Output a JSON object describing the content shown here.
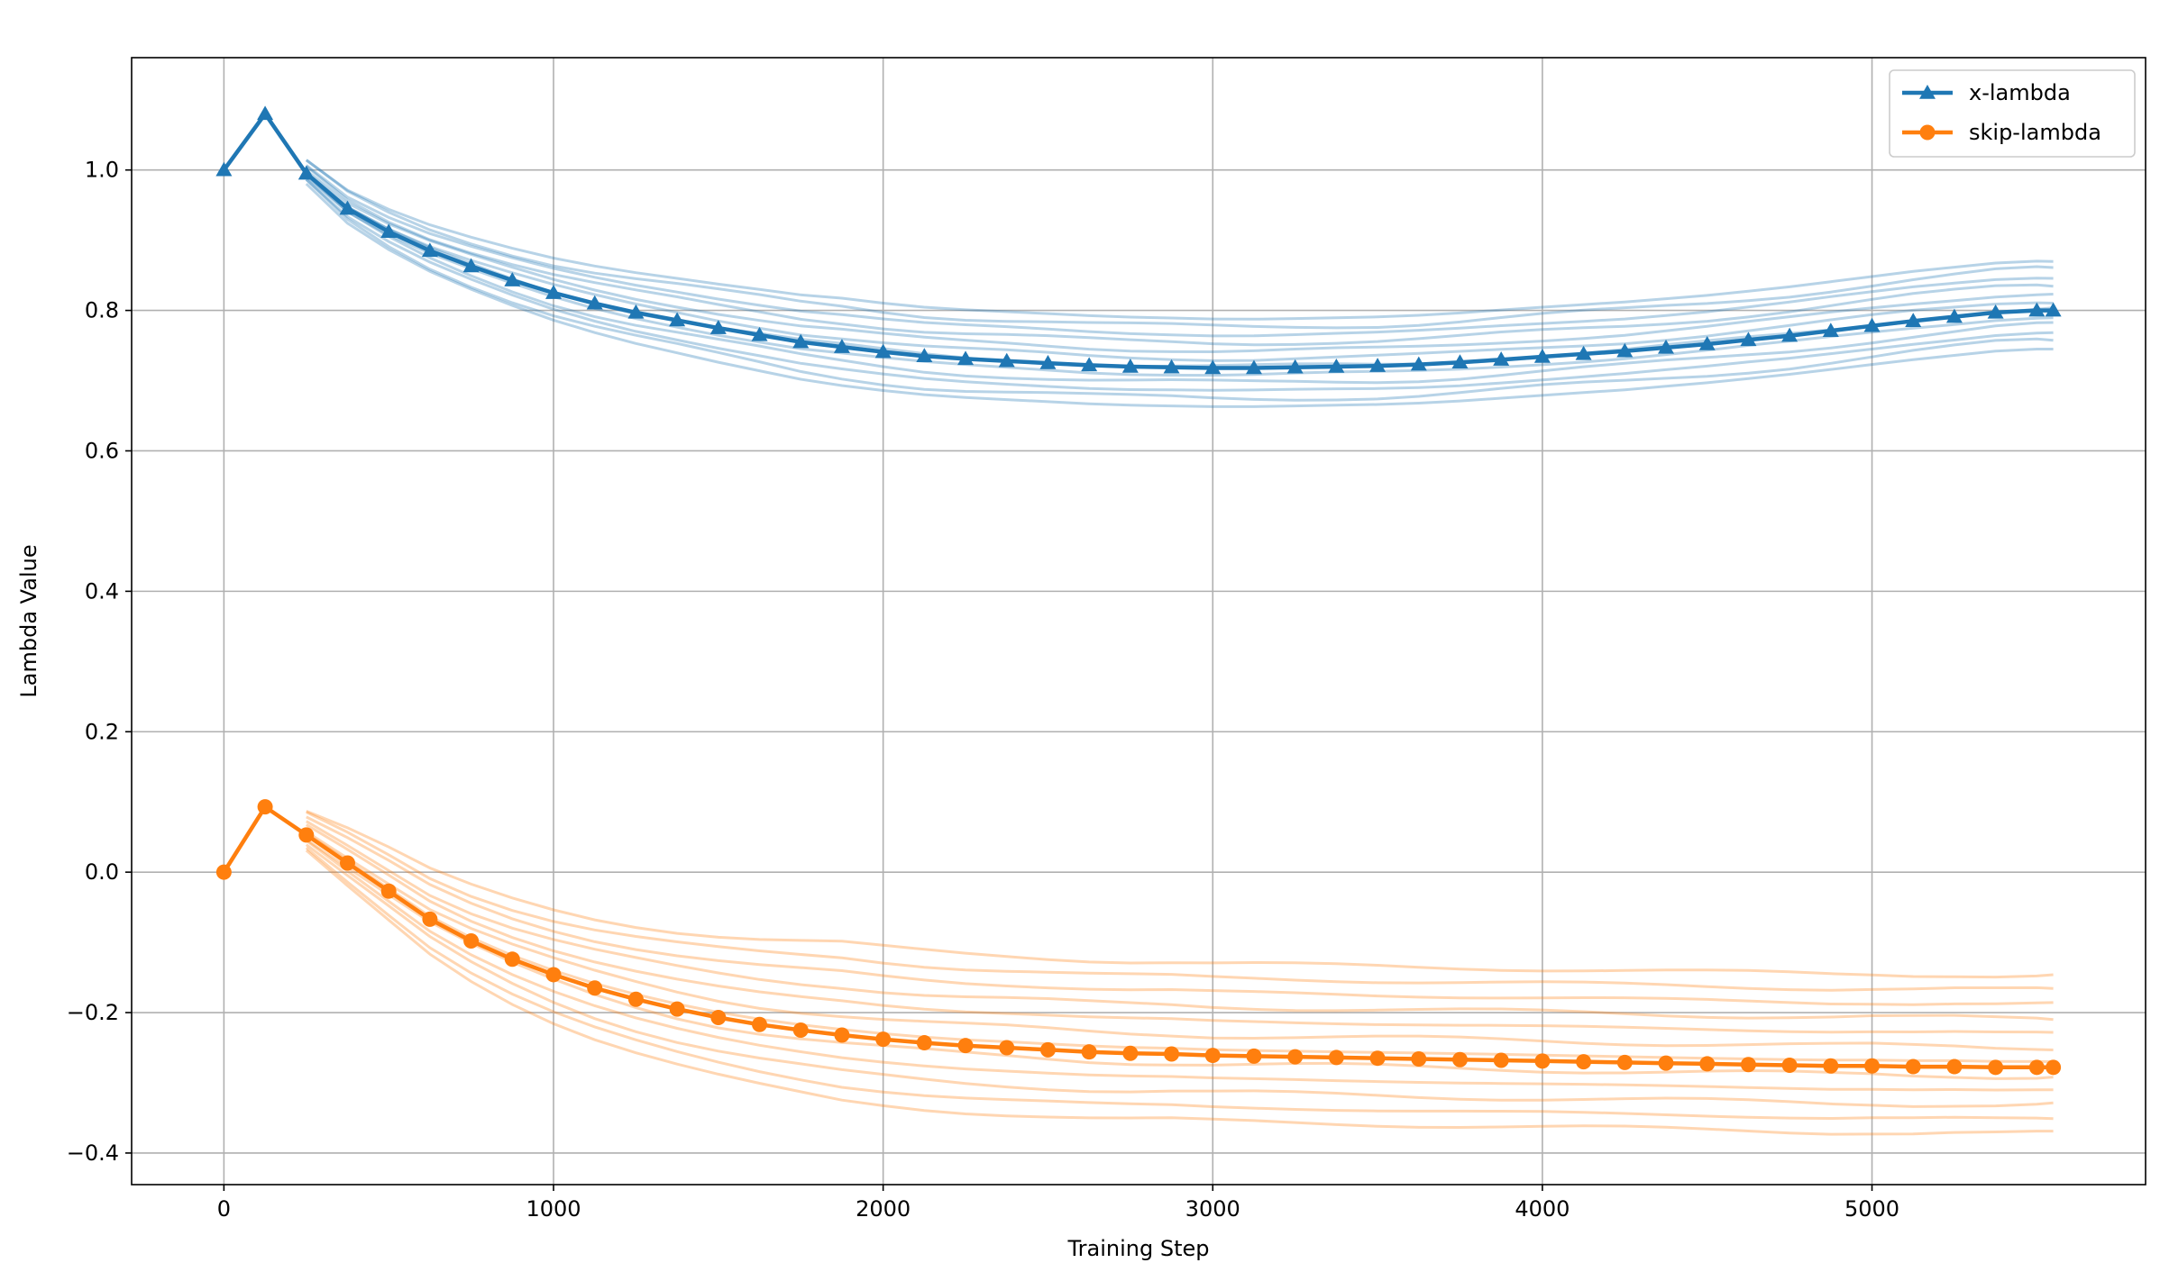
{
  "chart_data": {
    "type": "line",
    "xlabel": "Training Step",
    "ylabel": "Lambda Value",
    "xlim": [
      -280,
      5830
    ],
    "ylim": [
      -0.445,
      1.16
    ],
    "xticks": [
      0,
      1000,
      2000,
      3000,
      4000,
      5000
    ],
    "xtick_labels": [
      "0",
      "1000",
      "2000",
      "3000",
      "4000",
      "5000"
    ],
    "yticks": [
      -0.4,
      -0.2,
      0.0,
      0.2,
      0.4,
      0.6,
      0.8,
      1.0
    ],
    "ytick_labels": [
      "−0.4",
      "−0.2",
      "0.0",
      "0.2",
      "0.4",
      "0.6",
      "0.8",
      "1.0"
    ],
    "grid": true,
    "legend_position": "top-right",
    "x": [
      0,
      125,
      250,
      375,
      500,
      625,
      750,
      875,
      1000,
      1125,
      1250,
      1375,
      1500,
      1625,
      1750,
      1875,
      2000,
      2125,
      2250,
      2375,
      2500,
      2625,
      2750,
      2875,
      3000,
      3125,
      3250,
      3375,
      3500,
      3625,
      3750,
      3875,
      4000,
      4125,
      4250,
      4375,
      4500,
      4625,
      4750,
      4875,
      5000,
      5125,
      5250,
      5375,
      5500,
      5550
    ],
    "series": [
      {
        "name": "x-lambda",
        "color": "#1f77b4",
        "marker": "triangle",
        "values": [
          1.0,
          1.08,
          0.995,
          0.945,
          0.912,
          0.885,
          0.863,
          0.843,
          0.825,
          0.81,
          0.797,
          0.786,
          0.775,
          0.765,
          0.755,
          0.748,
          0.741,
          0.735,
          0.731,
          0.728,
          0.725,
          0.722,
          0.72,
          0.719,
          0.718,
          0.718,
          0.719,
          0.72,
          0.721,
          0.723,
          0.726,
          0.73,
          0.734,
          0.738,
          0.742,
          0.747,
          0.752,
          0.758,
          0.764,
          0.771,
          0.778,
          0.785,
          0.791,
          0.797,
          0.8,
          0.8
        ]
      },
      {
        "name": "skip-lambda",
        "color": "#ff7f0e",
        "marker": "circle",
        "values": [
          0.0,
          0.093,
          0.053,
          0.013,
          -0.027,
          -0.067,
          -0.098,
          -0.124,
          -0.146,
          -0.165,
          -0.181,
          -0.195,
          -0.207,
          -0.217,
          -0.225,
          -0.232,
          -0.238,
          -0.243,
          -0.247,
          -0.25,
          -0.253,
          -0.256,
          -0.258,
          -0.259,
          -0.261,
          -0.262,
          -0.263,
          -0.264,
          -0.265,
          -0.266,
          -0.267,
          -0.268,
          -0.269,
          -0.27,
          -0.271,
          -0.272,
          -0.273,
          -0.274,
          -0.275,
          -0.276,
          -0.276,
          -0.277,
          -0.277,
          -0.278,
          -0.278,
          -0.278
        ]
      }
    ],
    "background_lines": {
      "count_per_series": 12,
      "x_lambda_final_range": [
        0.745,
        0.87
      ],
      "skip_lambda_final_range": [
        -0.372,
        -0.147
      ]
    }
  }
}
